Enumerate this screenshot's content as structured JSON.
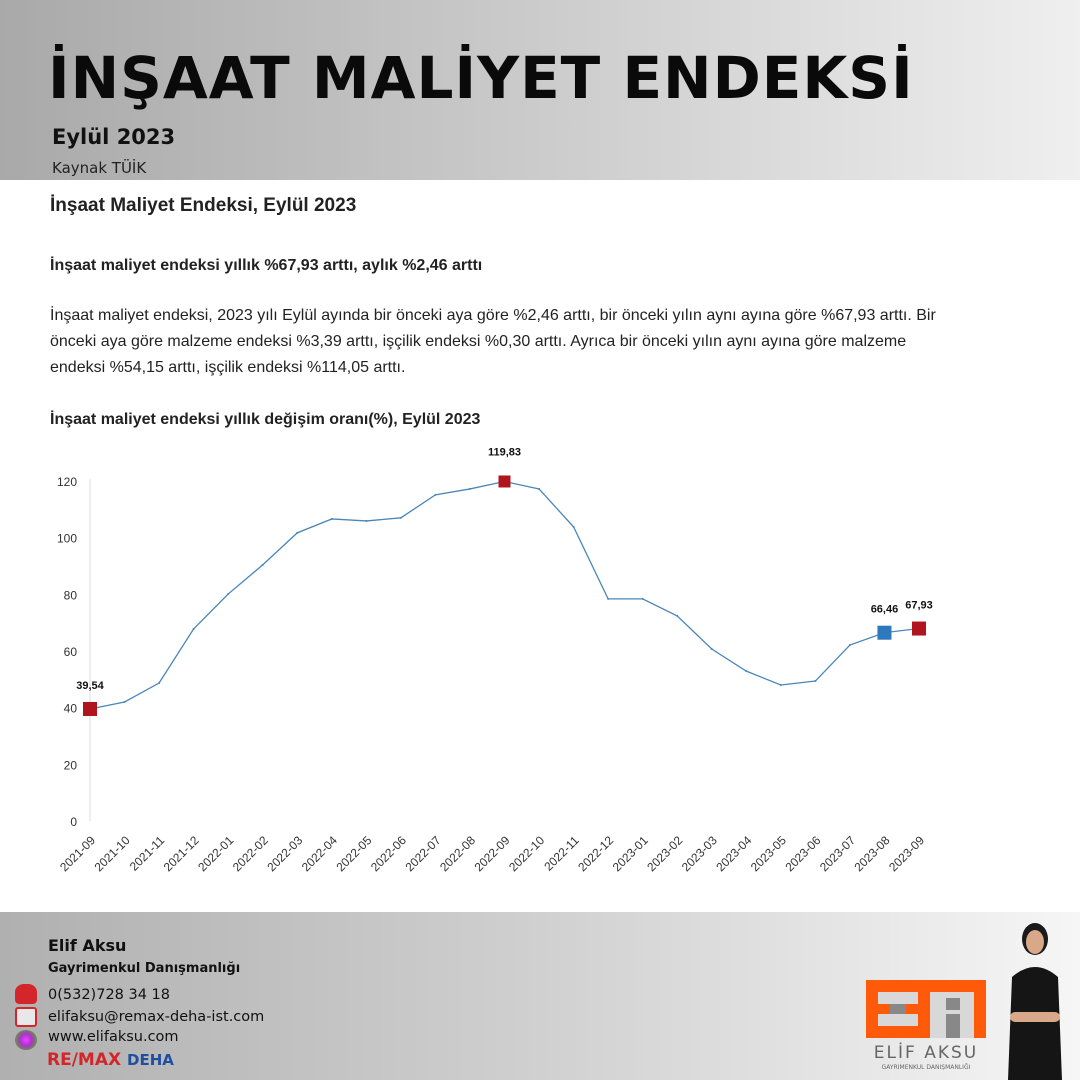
{
  "header": {
    "title": "İNŞAAT MALİYET ENDEKSİ",
    "subtitle": "Eylül 2023",
    "source": "Kaynak TÜİK"
  },
  "content": {
    "heading": "İnşaat Maliyet Endeksi, Eylül 2023",
    "subheading": "İnşaat maliyet endeksi yıllık %67,93 arttı, aylık %2,46 arttı",
    "paragraph": "İnşaat maliyet endeksi, 2023 yılı Eylül ayında bir önceki aya göre %2,46 arttı, bir önceki yılın aynı ayına göre %67,93 arttı. Bir önceki aya göre malzeme endeksi %3,39 arttı, işçilik endeksi %0,30 arttı. Ayrıca bir önceki yılın aynı ayına göre malzeme endeksi %54,15 arttı, işçilik endeksi %114,05 arttı."
  },
  "chart_data": {
    "type": "line",
    "title": "İnşaat maliyet endeksi yıllık değişim oranı(%), Eylül 2023",
    "x": [
      "2021-09",
      "2021-10",
      "2021-11",
      "2021-12",
      "2022-01",
      "2022-02",
      "2022-03",
      "2022-04",
      "2022-05",
      "2022-06",
      "2022-07",
      "2022-08",
      "2022-09",
      "2022-10",
      "2022-11",
      "2022-12",
      "2023-01",
      "2023-02",
      "2023-03",
      "2023-04",
      "2023-05",
      "2023-06",
      "2023-07",
      "2023-08",
      "2023-09"
    ],
    "values": [
      39.54,
      42.0,
      48.7,
      67.8,
      80.1,
      90.4,
      101.7,
      106.6,
      105.9,
      107.0,
      115.1,
      117.2,
      119.83,
      117.2,
      103.8,
      78.4,
      78.4,
      72.4,
      60.7,
      52.9,
      48.0,
      49.4,
      62.1,
      66.46,
      67.93
    ],
    "yticks": [
      0,
      20,
      40,
      60,
      80,
      100,
      120
    ],
    "ylim": [
      0,
      120
    ],
    "grid": false,
    "line_color": "#4a86b8",
    "annotations": [
      {
        "index": 0,
        "label": "39,54",
        "color": "#b0141c"
      },
      {
        "index": 12,
        "label": "119,83",
        "color": "#b0141c"
      },
      {
        "index": 23,
        "label": "66,46",
        "color": "#2e78bd"
      },
      {
        "index": 24,
        "label": "67,93",
        "color": "#b0141c"
      }
    ]
  },
  "footer": {
    "name": "Elif Aksu",
    "role": "Gayrimenkul Danışmanlığı",
    "phone": "0(532)728 34 18",
    "email": "elifaksu@remax-deha-ist.com",
    "website": "www.elifaksu.com",
    "remax": "RE/MAX",
    "deha": "DEHA",
    "logo_name": "ELİF AKSU",
    "logo_tagline": "GAYRIMENKUL DANIŞMANLIĞI",
    "brand_color": "#ff5a0a"
  }
}
